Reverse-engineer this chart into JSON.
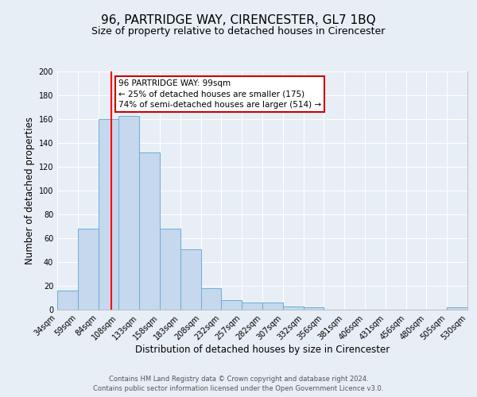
{
  "title": "96, PARTRIDGE WAY, CIRENCESTER, GL7 1BQ",
  "subtitle": "Size of property relative to detached houses in Cirencester",
  "xlabel": "Distribution of detached houses by size in Cirencester",
  "ylabel": "Number of detached properties",
  "footer_line1": "Contains HM Land Registry data © Crown copyright and database right 2024.",
  "footer_line2": "Contains public sector information licensed under the Open Government Licence v3.0.",
  "bin_edges": [
    34,
    59,
    84,
    108,
    133,
    158,
    183,
    208,
    232,
    257,
    282,
    307,
    332,
    356,
    381,
    406,
    431,
    456,
    480,
    505,
    530
  ],
  "bin_labels": [
    "34sqm",
    "59sqm",
    "84sqm",
    "108sqm",
    "133sqm",
    "158sqm",
    "183sqm",
    "208sqm",
    "232sqm",
    "257sqm",
    "282sqm",
    "307sqm",
    "332sqm",
    "356sqm",
    "381sqm",
    "406sqm",
    "431sqm",
    "456sqm",
    "480sqm",
    "505sqm",
    "530sqm"
  ],
  "counts": [
    16,
    68,
    160,
    163,
    132,
    68,
    51,
    18,
    8,
    6,
    6,
    3,
    2,
    0,
    0,
    0,
    0,
    0,
    0,
    2
  ],
  "bar_color": "#c5d8ed",
  "bar_edge_color": "#6baed6",
  "red_line_x": 99,
  "annotation_line1": "96 PARTRIDGE WAY: 99sqm",
  "annotation_line2": "← 25% of detached houses are smaller (175)",
  "annotation_line3": "74% of semi-detached houses are larger (514) →",
  "annotation_box_color": "#ffffff",
  "annotation_box_edge_color": "#cc0000",
  "ylim": [
    0,
    200
  ],
  "yticks": [
    0,
    20,
    40,
    60,
    80,
    100,
    120,
    140,
    160,
    180,
    200
  ],
  "background_color": "#e8eef5",
  "plot_background_color": "#e8eef5",
  "grid_color": "#ffffff",
  "title_fontsize": 11,
  "subtitle_fontsize": 9,
  "axis_label_fontsize": 8.5,
  "tick_fontsize": 7,
  "annotation_fontsize": 7.5,
  "footer_fontsize": 6.0
}
